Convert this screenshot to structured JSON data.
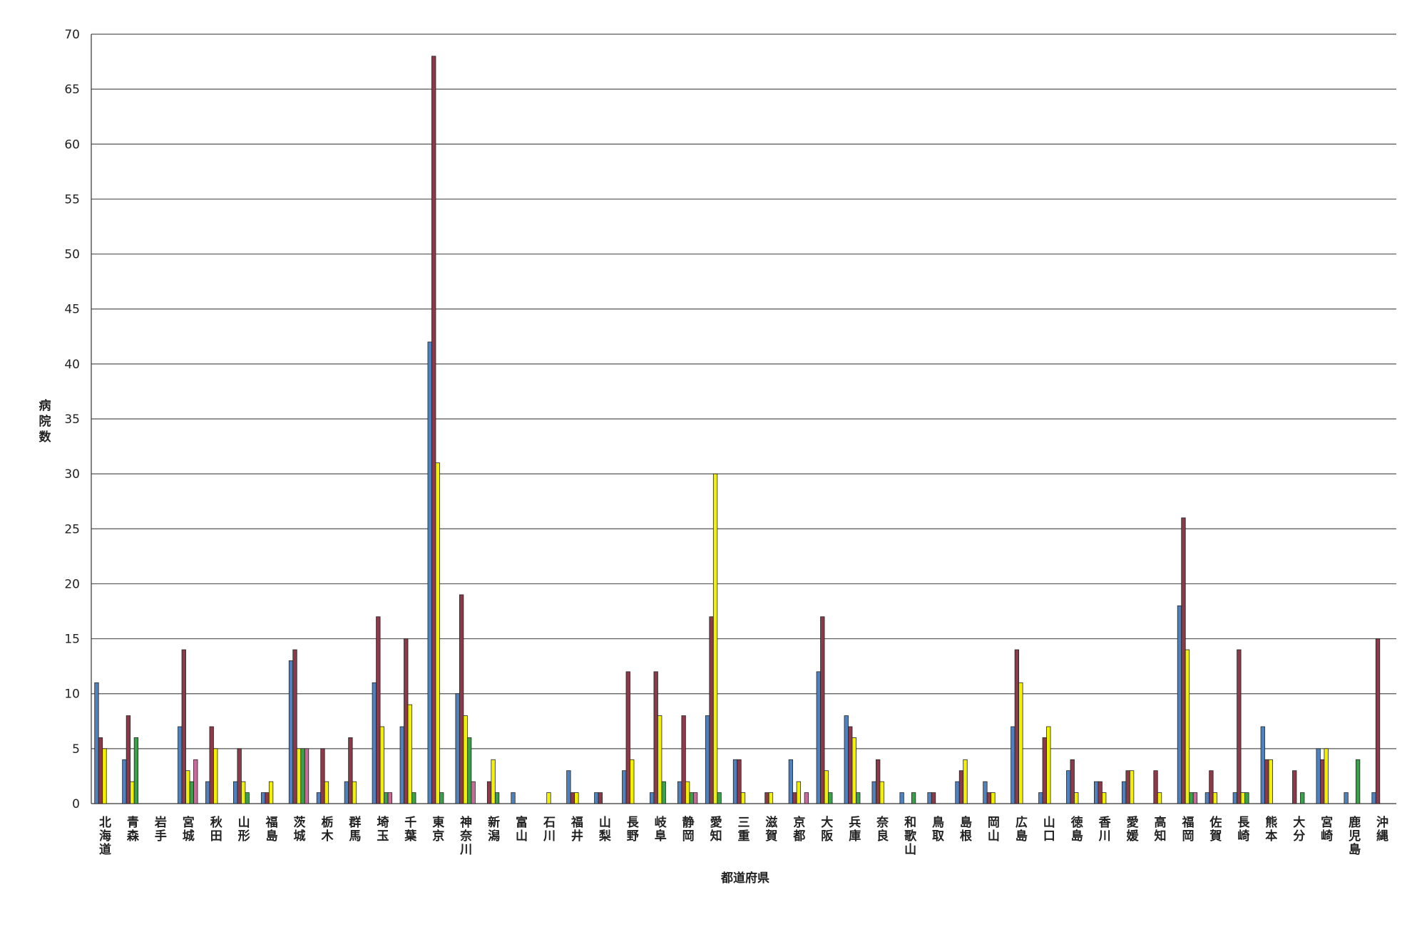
{
  "chart_data": {
    "type": "bar",
    "title": "",
    "xlabel": "都道府県",
    "ylabel": "病院数",
    "ylim": [
      0,
      70
    ],
    "yticks": [
      0,
      5,
      10,
      15,
      20,
      25,
      30,
      35,
      40,
      45,
      50,
      55,
      60,
      65,
      70
    ],
    "grid": true,
    "legend": "none",
    "categories": [
      "北海道",
      "青森",
      "岩手",
      "宮城",
      "秋田",
      "山形",
      "福島",
      "茨城",
      "栃木",
      "群馬",
      "埼玉",
      "千葉",
      "東京",
      "神奈川",
      "新潟",
      "富山",
      "石川",
      "福井",
      "山梨",
      "長野",
      "岐阜",
      "静岡",
      "愛知",
      "三重",
      "滋賀",
      "京都",
      "大阪",
      "兵庫",
      "奈良",
      "和歌山",
      "鳥取",
      "島根",
      "岡山",
      "広島",
      "山口",
      "徳島",
      "香川",
      "愛媛",
      "高知",
      "福岡",
      "佐賀",
      "長崎",
      "熊本",
      "大分",
      "宮崎",
      "鹿児島",
      "沖縄"
    ],
    "series": [
      {
        "color": "#4f81bd",
        "values": [
          11,
          4,
          0,
          7,
          2,
          2,
          1,
          13,
          1,
          2,
          11,
          7,
          42,
          10,
          0,
          1,
          0,
          3,
          1,
          3,
          1,
          2,
          8,
          4,
          0,
          4,
          12,
          8,
          2,
          1,
          1,
          2,
          2,
          7,
          1,
          3,
          2,
          2,
          0,
          18,
          1,
          1,
          7,
          0,
          5,
          1,
          1
        ]
      },
      {
        "color": "#8b3a4a",
        "values": [
          6,
          8,
          0,
          14,
          7,
          5,
          1,
          14,
          5,
          6,
          17,
          15,
          68,
          19,
          2,
          0,
          0,
          1,
          1,
          12,
          12,
          8,
          17,
          4,
          1,
          1,
          17,
          7,
          4,
          0,
          1,
          3,
          1,
          14,
          6,
          4,
          2,
          3,
          3,
          26,
          3,
          14,
          4,
          3,
          4,
          0,
          15
        ]
      },
      {
        "color": "#f2f200",
        "values": [
          5,
          2,
          0,
          3,
          5,
          2,
          2,
          5,
          2,
          2,
          7,
          9,
          31,
          8,
          4,
          0,
          1,
          1,
          0,
          4,
          8,
          2,
          30,
          1,
          1,
          2,
          3,
          6,
          2,
          0,
          0,
          4,
          1,
          11,
          7,
          1,
          1,
          3,
          1,
          14,
          1,
          1,
          4,
          0,
          5,
          0,
          0
        ]
      },
      {
        "color": "#3aa04a",
        "values": [
          0,
          6,
          0,
          2,
          0,
          1,
          0,
          5,
          0,
          0,
          1,
          1,
          1,
          6,
          1,
          0,
          0,
          0,
          0,
          0,
          2,
          1,
          1,
          0,
          0,
          0,
          1,
          1,
          0,
          1,
          0,
          0,
          0,
          0,
          0,
          0,
          0,
          0,
          0,
          1,
          0,
          1,
          0,
          1,
          0,
          4,
          0
        ]
      },
      {
        "color": "#c86a9a",
        "values": [
          0,
          0,
          0,
          4,
          0,
          0,
          0,
          5,
          0,
          0,
          1,
          0,
          0,
          2,
          0,
          0,
          0,
          0,
          0,
          0,
          0,
          1,
          0,
          0,
          0,
          1,
          0,
          0,
          0,
          0,
          0,
          0,
          0,
          0,
          0,
          0,
          0,
          0,
          0,
          1,
          0,
          0,
          0,
          0,
          0,
          0,
          0
        ]
      }
    ]
  }
}
